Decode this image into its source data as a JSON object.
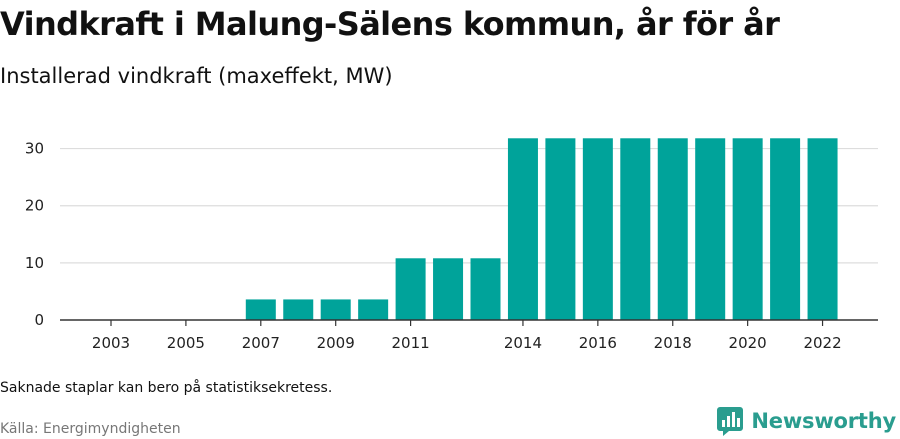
{
  "header": {
    "title": "Vindkraft i Malung-Sälens kommun, år för år",
    "subtitle": "Installerad vindkraft (maxeffekt, MW)"
  },
  "footer": {
    "note": "Saknade staplar kan bero på statistiksekretess.",
    "source": "Källa: Energimyndigheten"
  },
  "brand": {
    "name": "Newsworthy",
    "icon": "newsworthy-logo-icon",
    "color": "#2a9d8f"
  },
  "chart_data": {
    "type": "bar",
    "title": "Vindkraft i Malung-Sälens kommun, år för år",
    "subtitle": "Installerad vindkraft (maxeffekt, MW)",
    "categories": [
      "2003",
      "2004",
      "2005",
      "2006",
      "2007",
      "2008",
      "2009",
      "2010",
      "2011",
      "2012",
      "2013",
      "2014",
      "2015",
      "2016",
      "2017",
      "2018",
      "2019",
      "2020",
      "2021",
      "2022"
    ],
    "values": [
      0,
      0,
      0,
      0,
      3.6,
      3.6,
      3.6,
      3.6,
      10.8,
      10.8,
      10.8,
      31.8,
      31.8,
      31.8,
      31.8,
      31.8,
      31.8,
      31.8,
      31.8,
      31.8
    ],
    "x_tick_labels": [
      "2003",
      "2005",
      "2007",
      "2009",
      "2011",
      "2014",
      "2016",
      "2018",
      "2020",
      "2022"
    ],
    "y_ticks": [
      0,
      10,
      20,
      30
    ],
    "ylim": [
      0,
      35
    ],
    "xlabel": "",
    "ylabel": "",
    "grid": true,
    "legend": "none",
    "bar_color": "#00a39a"
  }
}
